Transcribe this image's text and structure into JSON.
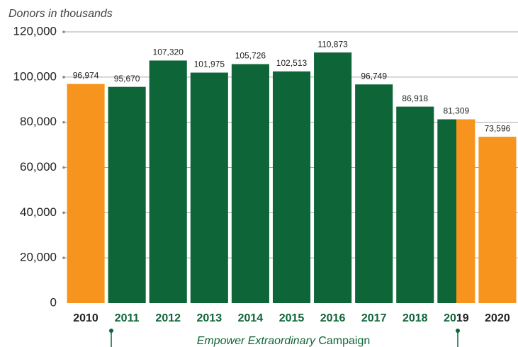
{
  "chart_data": {
    "type": "bar",
    "axis_label": "Donors in thousands",
    "categories": [
      "2010",
      "2011",
      "2012",
      "2013",
      "2014",
      "2015",
      "2016",
      "2017",
      "2018",
      "2019",
      "2020"
    ],
    "values": [
      96974,
      95670,
      107320,
      101975,
      105726,
      102513,
      110873,
      96749,
      86918,
      81309,
      73596
    ],
    "value_labels": [
      "96,974",
      "95,670",
      "107,320",
      "101,975",
      "105,726",
      "102,513",
      "110,873",
      "96,749",
      "86,918",
      "81,309",
      "73,596"
    ],
    "colors": [
      [
        "#f7941d"
      ],
      [
        "#0e6537"
      ],
      [
        "#0e6537"
      ],
      [
        "#0e6537"
      ],
      [
        "#0e6537"
      ],
      [
        "#0e6537"
      ],
      [
        "#0e6537"
      ],
      [
        "#0e6537"
      ],
      [
        "#0e6537"
      ],
      [
        "#0e6537",
        "#f7941d"
      ],
      [
        "#f7941d"
      ]
    ],
    "label_colors": [
      [
        "#222222"
      ],
      [
        "#0e6537"
      ],
      [
        "#0e6537"
      ],
      [
        "#0e6537"
      ],
      [
        "#0e6537"
      ],
      [
        "#0e6537"
      ],
      [
        "#0e6537"
      ],
      [
        "#0e6537"
      ],
      [
        "#0e6537"
      ],
      [
        "#0e6537",
        "#222222"
      ],
      [
        "#222222"
      ]
    ],
    "ylim": [
      0,
      120000
    ],
    "yticks": [
      0,
      {
        "value": 20000,
        "label": "20,000"
      },
      {
        "value": 40000,
        "label": "40,000"
      },
      {
        "value": 60000,
        "label": "60,000"
      },
      {
        "value": 80000,
        "label": "80,000"
      },
      {
        "value": 100000,
        "label": "100,000"
      },
      {
        "value": 120000,
        "label": "120,000"
      }
    ],
    "grid": true,
    "annotation": {
      "italic": "Empower Extraordinary",
      "plain": "Campaign"
    }
  }
}
